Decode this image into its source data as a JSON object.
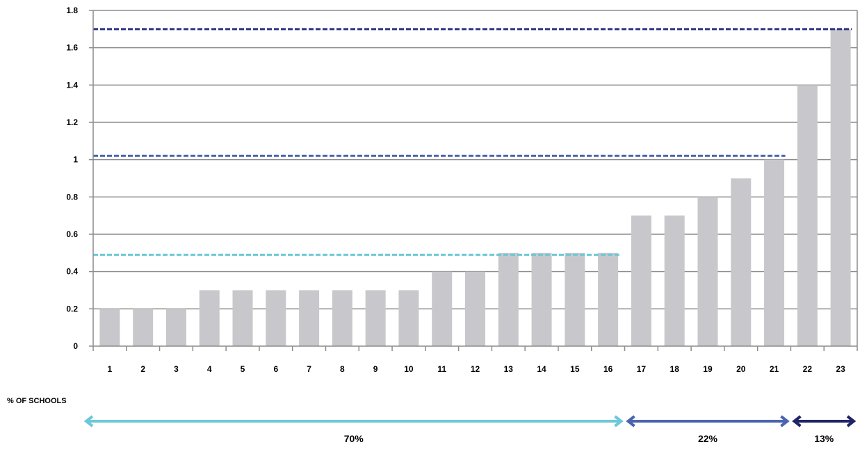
{
  "chart_data": {
    "type": "bar",
    "title": "",
    "xlabel": "",
    "ylabel": "",
    "ylim": [
      0,
      1.8
    ],
    "y_ticks": [
      {
        "value": 0,
        "label": "0"
      },
      {
        "value": 0.2,
        "label": "0.2"
      },
      {
        "value": 0.4,
        "label": "0.4"
      },
      {
        "value": 0.6,
        "label": "0.6"
      },
      {
        "value": 0.8,
        "label": "0.8"
      },
      {
        "value": 1.0,
        "label": "1"
      },
      {
        "value": 1.2,
        "label": "1.2"
      },
      {
        "value": 1.4,
        "label": "1.4"
      },
      {
        "value": 1.6,
        "label": "1.6"
      },
      {
        "value": 1.8,
        "label": "1.8"
      }
    ],
    "grid": true,
    "categories": [
      "1",
      "2",
      "3",
      "4",
      "5",
      "6",
      "7",
      "8",
      "9",
      "10",
      "11",
      "12",
      "13",
      "14",
      "15",
      "16",
      "17",
      "18",
      "19",
      "20",
      "21",
      "22",
      "23"
    ],
    "values": [
      0.2,
      0.2,
      0.2,
      0.3,
      0.3,
      0.3,
      0.3,
      0.3,
      0.3,
      0.3,
      0.4,
      0.4,
      0.5,
      0.5,
      0.5,
      0.5,
      0.7,
      0.7,
      0.8,
      0.9,
      1.0,
      1.4,
      1.7
    ],
    "bar_color": "#c8c8cc",
    "reference_lines": [
      {
        "value": 0.49,
        "from_category": "1",
        "to_category": "16",
        "color": "#6cc8d8"
      },
      {
        "value": 1.02,
        "from_category": "1",
        "to_category": "21",
        "color": "#4a64b0"
      },
      {
        "value": 1.7,
        "from_category": "1",
        "to_category": "23",
        "color": "#2e3385"
      }
    ],
    "annotations": {
      "caption": "% OF SCHOOLS",
      "ranges": [
        {
          "label": "70%",
          "from_category": "1",
          "to_category": "16",
          "color": "#6cc8d8"
        },
        {
          "label": "22%",
          "from_category": "17",
          "to_category": "21",
          "color": "#4a64b0"
        },
        {
          "label": "13%",
          "from_category": "22",
          "to_category": "23",
          "color": "#1f2466"
        }
      ]
    }
  }
}
